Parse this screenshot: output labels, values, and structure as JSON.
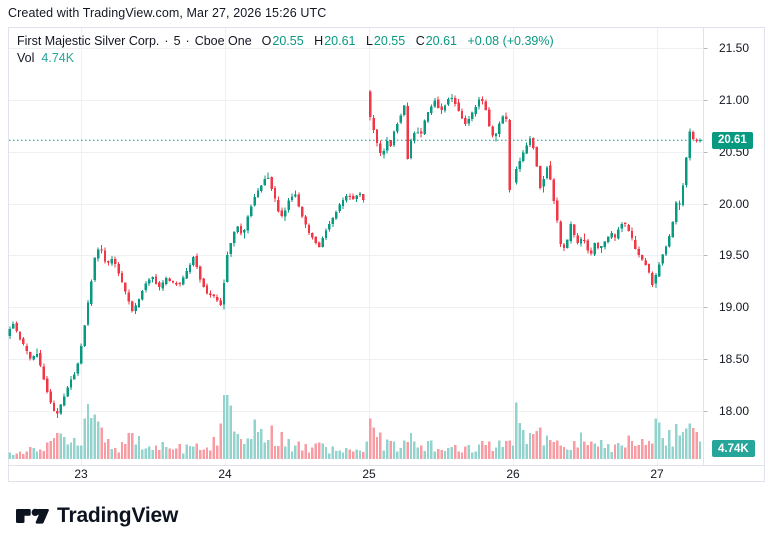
{
  "meta": {
    "created_line": "Created with TradingView.com, Mar 27, 2026 15:26 UTC"
  },
  "header": {
    "symbol_title": "First Majestic Silver Corp.",
    "separator": "·",
    "interval": "5",
    "exchange": "Cboe One",
    "ohlc": {
      "o_label": "O",
      "o": "20.55",
      "h_label": "H",
      "h": "20.61",
      "l_label": "L",
      "l": "20.55",
      "c_label": "C",
      "c": "20.61",
      "change": "+0.08 (+0.39%)"
    },
    "vol_label": "Vol",
    "vol_value": "4.74K"
  },
  "axes": {
    "price_ticks": [
      "21.50",
      "21.00",
      "20.50",
      "20.00",
      "19.50",
      "19.00",
      "18.50",
      "18.00"
    ],
    "time_ticks": [
      "23",
      "24",
      "25",
      "26",
      "27"
    ],
    "price_badge": "20.61",
    "volume_badge": "4.74K"
  },
  "footer": {
    "brand": "TradingView"
  },
  "colors": {
    "up": "#089981",
    "down": "#f23645",
    "volume_up": "#93d3cd",
    "volume_down": "#f99ba2",
    "grid": "#eef0f3",
    "axis_border": "#e0e3eb",
    "tick_mark": "#b2b5be",
    "text": "#131722",
    "badge_price_bg": "#089981",
    "badge_volume_bg": "#26a69a",
    "dotted_line": "#089981"
  },
  "chart_data": {
    "type": "candlestick",
    "symbol": "First Majestic Silver Corp.",
    "interval_minutes": 5,
    "exchange": "Cboe One",
    "summary": {
      "open": 20.55,
      "high": 20.61,
      "low": 20.55,
      "close": 20.61,
      "change": "+0.08",
      "change_pct": "+0.39%",
      "volume": "4.74K"
    },
    "price_axis": {
      "min": 17.75,
      "max": 21.55,
      "tick_step": 0.5,
      "ticks": [
        21.5,
        21.0,
        20.5,
        20.0,
        19.5,
        19.0,
        18.5,
        18.0
      ]
    },
    "time_axis_days": [
      23,
      24,
      25,
      26,
      27
    ],
    "last_close": 20.61,
    "session_gaps": [
      24.983,
      25.99
    ],
    "waypoints": [
      [
        22.494,
        18.72
      ],
      [
        22.536,
        18.86
      ],
      [
        22.578,
        18.72
      ],
      [
        22.626,
        18.6
      ],
      [
        22.668,
        18.48
      ],
      [
        22.702,
        18.58
      ],
      [
        22.751,
        18.32
      ],
      [
        22.799,
        18.08
      ],
      [
        22.841,
        17.95
      ],
      [
        22.889,
        18.12
      ],
      [
        22.938,
        18.3
      ],
      [
        22.979,
        18.38
      ],
      [
        23.021,
        18.68
      ],
      [
        23.062,
        19.05
      ],
      [
        23.111,
        19.5
      ],
      [
        23.145,
        19.6
      ],
      [
        23.187,
        19.4
      ],
      [
        23.229,
        19.48
      ],
      [
        23.277,
        19.32
      ],
      [
        23.319,
        19.15
      ],
      [
        23.367,
        18.97
      ],
      [
        23.402,
        19.03
      ],
      [
        23.457,
        19.22
      ],
      [
        23.506,
        19.3
      ],
      [
        23.554,
        19.18
      ],
      [
        23.602,
        19.28
      ],
      [
        23.651,
        19.24
      ],
      [
        23.699,
        19.22
      ],
      [
        23.748,
        19.35
      ],
      [
        23.796,
        19.5
      ],
      [
        23.838,
        19.28
      ],
      [
        23.886,
        19.14
      ],
      [
        23.935,
        19.1
      ],
      [
        23.976,
        19.05
      ],
      [
        23.993,
        18.98
      ],
      [
        24.015,
        19.45
      ],
      [
        24.046,
        19.58
      ],
      [
        24.074,
        19.72
      ],
      [
        24.101,
        19.78
      ],
      [
        24.136,
        19.68
      ],
      [
        24.177,
        19.92
      ],
      [
        24.226,
        20.1
      ],
      [
        24.267,
        20.18
      ],
      [
        24.302,
        20.29
      ],
      [
        24.343,
        20.12
      ],
      [
        24.385,
        19.92
      ],
      [
        24.413,
        19.86
      ],
      [
        24.454,
        20.04
      ],
      [
        24.496,
        20.1
      ],
      [
        24.537,
        19.92
      ],
      [
        24.586,
        19.74
      ],
      [
        24.634,
        19.64
      ],
      [
        24.669,
        19.58
      ],
      [
        24.71,
        19.74
      ],
      [
        24.759,
        19.86
      ],
      [
        24.807,
        19.98
      ],
      [
        24.856,
        20.08
      ],
      [
        24.904,
        20.05
      ],
      [
        24.946,
        20.1
      ],
      [
        24.98,
        20.03
      ],
      [
        24.985,
        21.02
      ],
      [
        24.991,
        21.28
      ],
      [
        25.001,
        20.92
      ],
      [
        25.022,
        20.82
      ],
      [
        25.05,
        20.68
      ],
      [
        25.077,
        20.52
      ],
      [
        25.105,
        20.44
      ],
      [
        25.133,
        20.62
      ],
      [
        25.161,
        20.55
      ],
      [
        25.188,
        20.7
      ],
      [
        25.223,
        20.82
      ],
      [
        25.257,
        20.95
      ],
      [
        25.278,
        20.42
      ],
      [
        25.306,
        20.62
      ],
      [
        25.34,
        20.72
      ],
      [
        25.368,
        20.64
      ],
      [
        25.403,
        20.82
      ],
      [
        25.437,
        20.92
      ],
      [
        25.472,
        21.0
      ],
      [
        25.507,
        20.88
      ],
      [
        25.541,
        20.95
      ],
      [
        25.576,
        21.04
      ],
      [
        25.61,
        20.97
      ],
      [
        25.645,
        20.86
      ],
      [
        25.68,
        20.77
      ],
      [
        25.714,
        20.84
      ],
      [
        25.749,
        20.92
      ],
      [
        25.783,
        21.02
      ],
      [
        25.818,
        20.94
      ],
      [
        25.853,
        20.7
      ],
      [
        25.881,
        20.62
      ],
      [
        25.915,
        20.76
      ],
      [
        25.95,
        20.86
      ],
      [
        25.977,
        20.77
      ],
      [
        25.982,
        20.78
      ],
      [
        25.99,
        19.98
      ],
      [
        25.998,
        20.1
      ],
      [
        26.026,
        20.3
      ],
      [
        26.061,
        20.42
      ],
      [
        26.095,
        20.52
      ],
      [
        26.13,
        20.63
      ],
      [
        26.164,
        20.5
      ],
      [
        26.185,
        20.28
      ],
      [
        26.206,
        20.12
      ],
      [
        26.234,
        20.3
      ],
      [
        26.254,
        20.38
      ],
      [
        26.275,
        20.2
      ],
      [
        26.296,
        20.02
      ],
      [
        26.317,
        19.85
      ],
      [
        26.338,
        19.62
      ],
      [
        26.358,
        19.55
      ],
      [
        26.386,
        19.62
      ],
      [
        26.414,
        19.8
      ],
      [
        26.441,
        19.68
      ],
      [
        26.469,
        19.6
      ],
      [
        26.497,
        19.7
      ],
      [
        26.525,
        19.56
      ],
      [
        26.552,
        19.5
      ],
      [
        26.58,
        19.62
      ],
      [
        26.608,
        19.55
      ],
      [
        26.635,
        19.6
      ],
      [
        26.663,
        19.66
      ],
      [
        26.691,
        19.72
      ],
      [
        26.719,
        19.66
      ],
      [
        26.746,
        19.76
      ],
      [
        26.774,
        19.82
      ],
      [
        26.802,
        19.78
      ],
      [
        26.829,
        19.7
      ],
      [
        26.857,
        19.58
      ],
      [
        26.885,
        19.5
      ],
      [
        26.912,
        19.45
      ],
      [
        26.94,
        19.4
      ],
      [
        26.968,
        19.28
      ],
      [
        26.989,
        19.18
      ],
      [
        27.009,
        19.35
      ],
      [
        27.037,
        19.45
      ],
      [
        27.065,
        19.55
      ],
      [
        27.093,
        19.65
      ],
      [
        27.12,
        19.8
      ],
      [
        27.141,
        20.02
      ],
      [
        27.162,
        19.94
      ],
      [
        27.19,
        20.15
      ],
      [
        27.217,
        20.45
      ],
      [
        27.238,
        20.7
      ],
      [
        27.266,
        20.61
      ],
      [
        27.29,
        20.61
      ]
    ],
    "volume_profile": [
      [
        22.494,
        8
      ],
      [
        22.543,
        6
      ],
      [
        22.591,
        7
      ],
      [
        22.647,
        10
      ],
      [
        22.702,
        8
      ],
      [
        22.751,
        12
      ],
      [
        22.799,
        15
      ],
      [
        22.841,
        22
      ],
      [
        22.875,
        18
      ],
      [
        22.91,
        14
      ],
      [
        22.951,
        16
      ],
      [
        22.993,
        26
      ],
      [
        23.028,
        38
      ],
      [
        23.048,
        46
      ],
      [
        23.076,
        34
      ],
      [
        23.111,
        28
      ],
      [
        23.145,
        22
      ],
      [
        23.187,
        16
      ],
      [
        23.235,
        12
      ],
      [
        23.284,
        14
      ],
      [
        23.325,
        18
      ],
      [
        23.367,
        22
      ],
      [
        23.409,
        16
      ],
      [
        23.457,
        12
      ],
      [
        23.506,
        10
      ],
      [
        23.554,
        14
      ],
      [
        23.602,
        10
      ],
      [
        23.651,
        12
      ],
      [
        23.699,
        9
      ],
      [
        23.748,
        12
      ],
      [
        23.796,
        16
      ],
      [
        23.838,
        12
      ],
      [
        23.886,
        14
      ],
      [
        23.935,
        20
      ],
      [
        23.963,
        30
      ],
      [
        23.983,
        62
      ],
      [
        24.011,
        50
      ],
      [
        24.046,
        26
      ],
      [
        24.087,
        20
      ],
      [
        24.136,
        16
      ],
      [
        24.177,
        22
      ],
      [
        24.205,
        44
      ],
      [
        24.24,
        24
      ],
      [
        24.274,
        20
      ],
      [
        24.302,
        26
      ],
      [
        24.343,
        18
      ],
      [
        24.385,
        22
      ],
      [
        24.413,
        16
      ],
      [
        24.454,
        12
      ],
      [
        24.496,
        14
      ],
      [
        24.537,
        12
      ],
      [
        24.586,
        10
      ],
      [
        24.634,
        12
      ],
      [
        24.669,
        14
      ],
      [
        24.71,
        10
      ],
      [
        24.759,
        8
      ],
      [
        24.807,
        12
      ],
      [
        24.856,
        10
      ],
      [
        24.904,
        12
      ],
      [
        24.946,
        10
      ],
      [
        24.987,
        38
      ],
      [
        25.015,
        30
      ],
      [
        25.05,
        20
      ],
      [
        25.105,
        16
      ],
      [
        25.161,
        12
      ],
      [
        25.209,
        14
      ],
      [
        25.257,
        24
      ],
      [
        25.285,
        20
      ],
      [
        25.34,
        12
      ],
      [
        25.403,
        14
      ],
      [
        25.472,
        16
      ],
      [
        25.541,
        12
      ],
      [
        25.576,
        16
      ],
      [
        25.645,
        12
      ],
      [
        25.714,
        10
      ],
      [
        25.783,
        18
      ],
      [
        25.832,
        14
      ],
      [
        25.881,
        16
      ],
      [
        25.929,
        12
      ],
      [
        25.977,
        14
      ],
      [
        26.005,
        40
      ],
      [
        26.04,
        28
      ],
      [
        26.095,
        20
      ],
      [
        26.13,
        24
      ],
      [
        26.164,
        26
      ],
      [
        26.213,
        18
      ],
      [
        26.261,
        14
      ],
      [
        26.317,
        12
      ],
      [
        26.372,
        14
      ],
      [
        26.421,
        12
      ],
      [
        26.462,
        28
      ],
      [
        26.504,
        22
      ],
      [
        26.545,
        18
      ],
      [
        26.594,
        14
      ],
      [
        26.642,
        12
      ],
      [
        26.691,
        10
      ],
      [
        26.746,
        12
      ],
      [
        26.788,
        16
      ],
      [
        26.837,
        12
      ],
      [
        26.891,
        14
      ],
      [
        26.94,
        16
      ],
      [
        26.989,
        34
      ],
      [
        27.023,
        26
      ],
      [
        27.058,
        20
      ],
      [
        27.1,
        22
      ],
      [
        27.134,
        26
      ],
      [
        27.169,
        20
      ],
      [
        27.204,
        32
      ],
      [
        27.231,
        42
      ],
      [
        27.259,
        24
      ],
      [
        27.287,
        14
      ]
    ]
  }
}
